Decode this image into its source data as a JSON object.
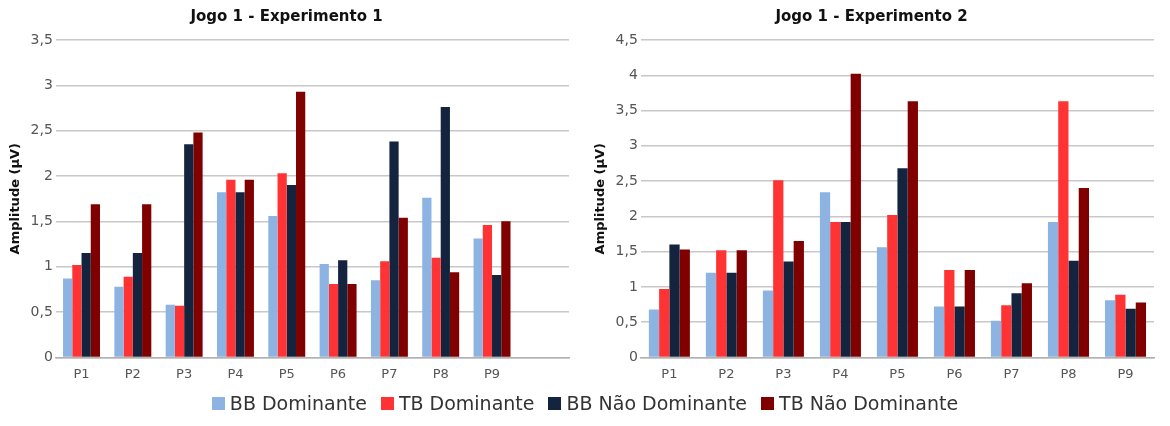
{
  "chart_data": [
    {
      "type": "bar",
      "title": "Jogo 1 - Experimento 1",
      "ylabel": "Amplitude (µV)",
      "categories": [
        "P1",
        "P2",
        "P3",
        "P4",
        "P5",
        "P6",
        "P7",
        "P8",
        "P9",
        null
      ],
      "series": [
        {
          "color": "#8db3e2",
          "values": [
            0.87,
            0.78,
            0.58,
            1.82,
            1.56,
            1.03,
            0.85,
            1.76,
            1.31,
            null
          ]
        },
        {
          "color": "#ff3333",
          "values": [
            1.02,
            0.89,
            0.57,
            1.96,
            2.03,
            0.81,
            1.06,
            1.1,
            1.46,
            null
          ]
        },
        {
          "color": "#14243f",
          "values": [
            1.15,
            1.15,
            2.35,
            1.82,
            1.9,
            1.07,
            2.38,
            2.76,
            0.91,
            null
          ]
        },
        {
          "color": "#800000",
          "values": [
            1.69,
            1.69,
            2.48,
            1.96,
            2.93,
            0.81,
            1.54,
            0.94,
            1.5,
            null
          ]
        }
      ],
      "ylim": [
        0,
        3.5
      ],
      "yticks": [
        0,
        {
          "value": 0.5,
          "label": "0,5"
        },
        1,
        {
          "value": 1.5,
          "label": "1,5"
        },
        2,
        {
          "value": 2.5,
          "label": "2,5"
        },
        3,
        {
          "value": 3.5,
          "label": "3,5"
        }
      ],
      "grid": "y"
    },
    {
      "type": "bar",
      "title": "Jogo 1 - Experimento 2",
      "ylabel": "Amplitude (µV)",
      "categories": [
        "P1",
        "P2",
        "P3",
        "P4",
        "P5",
        "P6",
        "P7",
        "P8",
        "P9"
      ],
      "series": [
        {
          "name": "BB Dominante",
          "color": "#8db3e2",
          "values": [
            0.68,
            1.2,
            0.95,
            2.34,
            1.56,
            0.72,
            0.52,
            1.92,
            0.81
          ]
        },
        {
          "name": "TB Dominante",
          "color": "#ff3333",
          "values": [
            0.97,
            1.52,
            2.51,
            1.92,
            2.02,
            1.24,
            0.74,
            3.63,
            0.89
          ]
        },
        {
          "name": "BB Não Dominante",
          "color": "#14243f",
          "values": [
            1.6,
            1.2,
            1.36,
            1.92,
            2.68,
            0.72,
            0.91,
            1.37,
            0.69
          ]
        },
        {
          "name": "TB Não Dominante",
          "color": "#800000",
          "values": [
            1.53,
            1.52,
            1.65,
            4.02,
            3.63,
            1.24,
            1.05,
            2.4,
            0.78
          ]
        }
      ],
      "ylim": [
        0,
        4.5
      ],
      "yticks": [
        0,
        {
          "value": 0.5,
          "label": "0,5"
        },
        1,
        {
          "value": 1.5,
          "label": "1,5"
        },
        2,
        {
          "value": 2.5,
          "label": "2,5"
        },
        3,
        {
          "value": 3.5,
          "label": "3,5"
        },
        4,
        {
          "value": 4.5,
          "label": "4,5"
        }
      ],
      "grid": "y",
      "legend": "bottom"
    }
  ]
}
